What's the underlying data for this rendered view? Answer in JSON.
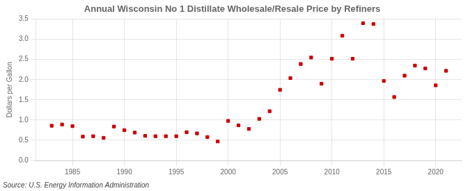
{
  "chart_data": {
    "type": "scatter",
    "title": "Annual Wisconsin No 1 Distillate Wholesale/Resale Price by Refiners",
    "ylabel": "Dollars per Gallon",
    "annotations": [
      "Source: U.S. Energy Information Administration"
    ],
    "x": [
      1983,
      1984,
      1985,
      1986,
      1987,
      1988,
      1989,
      1990,
      1991,
      1992,
      1993,
      1994,
      1995,
      1996,
      1997,
      1998,
      1999,
      2000,
      2001,
      2002,
      2003,
      2004,
      2005,
      2006,
      2007,
      2008,
      2009,
      2010,
      2011,
      2012,
      2013,
      2014,
      2015,
      2016,
      2017,
      2018,
      2019,
      2020,
      2021
    ],
    "values": [
      0.86,
      0.89,
      0.85,
      0.59,
      0.6,
      0.56,
      0.84,
      0.75,
      0.69,
      0.61,
      0.6,
      0.6,
      0.6,
      0.7,
      0.67,
      0.58,
      0.47,
      0.98,
      0.87,
      0.78,
      1.03,
      1.22,
      1.75,
      2.04,
      2.39,
      2.55,
      1.9,
      2.52,
      3.09,
      2.52,
      3.4,
      3.38,
      1.97,
      1.57,
      2.1,
      2.35,
      2.28,
      1.86,
      2.22
    ],
    "color": "#cc0000",
    "marker": "square",
    "xlim": [
      1981.5,
      2022.5
    ],
    "xticks": [
      1985,
      1990,
      1995,
      2000,
      2005,
      2010,
      2015,
      2020
    ],
    "ylim": [
      0.0,
      3.5
    ],
    "yticks": [
      {
        "value": 0,
        "label": "0.0"
      },
      0.5,
      {
        "value": 1,
        "label": "1.0"
      },
      1.5,
      {
        "value": 2,
        "label": "2.0"
      },
      2.5,
      {
        "value": 3,
        "label": "3.0"
      },
      3.5
    ],
    "grid": true
  }
}
